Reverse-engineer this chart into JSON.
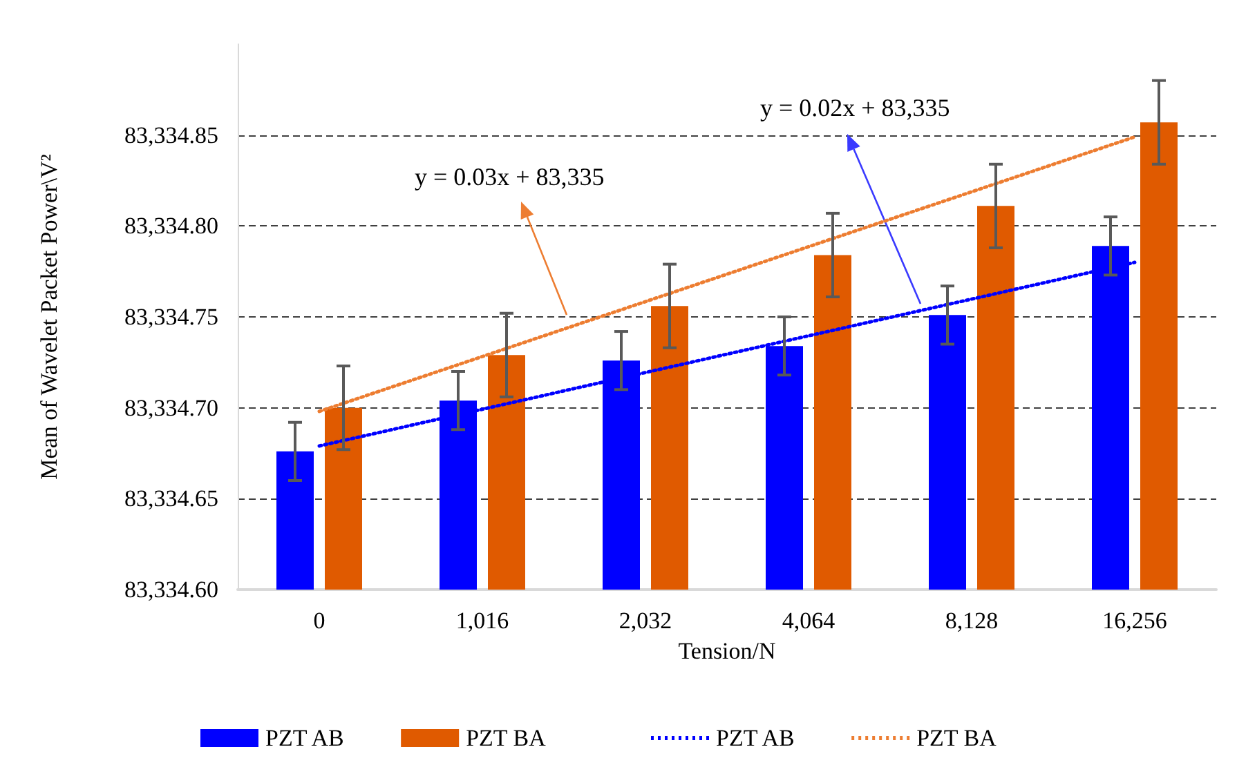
{
  "chart_data": {
    "type": "bar",
    "xlabel": "Tension/N",
    "ylabel": "Mean of Wavelet Packet Power\\V²",
    "categories": [
      "0",
      "1,016",
      "2,032",
      "4,064",
      "8,128",
      "16,256"
    ],
    "series": [
      {
        "name": "PZT AB",
        "color": "#0000ff",
        "values": [
          83334.676,
          83334.704,
          83334.726,
          83334.734,
          83334.751,
          83334.789
        ],
        "errors": [
          0.016,
          0.016,
          0.016,
          0.016,
          0.016,
          0.016
        ]
      },
      {
        "name": "PZT BA",
        "color": "#e05a00",
        "values": [
          83334.7,
          83334.729,
          83334.756,
          83334.784,
          83334.811,
          83334.857
        ],
        "errors": [
          0.023,
          0.023,
          0.023,
          0.023,
          0.023,
          0.023
        ]
      },
      {
        "name": "PZT AB",
        "type": "line",
        "color": "#0000ff",
        "x": [
          "0",
          "16,256"
        ],
        "values": [
          83334.679,
          83334.78
        ],
        "line_style": "dotted",
        "marker": "none"
      },
      {
        "name": "PZT BA",
        "type": "line",
        "color": "#ed7d31",
        "x": [
          "0",
          "16,256"
        ],
        "values": [
          83334.698,
          83334.849
        ],
        "line_style": "dotted",
        "marker": "none"
      }
    ],
    "ylim": [
      83334.6,
      83334.9
    ],
    "yticks": [
      {
        "value": 83334.6,
        "label": "83,334.60"
      },
      {
        "value": 83334.65,
        "label": "83,334.65"
      },
      {
        "value": 83334.7,
        "label": "83,334.70"
      },
      {
        "value": 83334.75,
        "label": "83,334.75"
      },
      {
        "value": 83334.8,
        "label": "83,334.80"
      },
      {
        "value": 83334.85,
        "label": "83,334.85"
      }
    ],
    "grid": "y",
    "legend": "bottom",
    "annotations": [
      "y = 0.03x + 83,335",
      "y = 0.02x + 83,335"
    ]
  }
}
